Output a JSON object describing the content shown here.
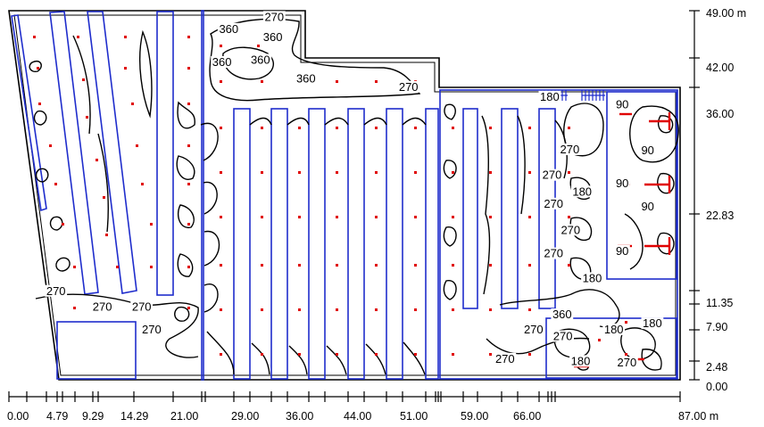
{
  "diagram": {
    "x_axis_labels": [
      "0.00",
      "4.79",
      "9.29",
      "14.29",
      "21.00",
      "29.00",
      "36.00",
      "44.00",
      "51.00",
      "59.00",
      "66.00",
      "87.00 m"
    ],
    "y_axis_labels": [
      "49.00 m",
      "42.00",
      "36.00",
      "22.83",
      "11.35",
      "7.90",
      "2.48",
      "0.00"
    ],
    "isoline_labels": [
      {
        "text": "270",
        "x": 34.4,
        "y": 48.2
      },
      {
        "text": "360",
        "x": 28.5,
        "y": 46.6
      },
      {
        "text": "360",
        "x": 34.2,
        "y": 45.5
      },
      {
        "text": "360",
        "x": 27.6,
        "y": 42.2
      },
      {
        "text": "360",
        "x": 32.6,
        "y": 42.5
      },
      {
        "text": "360",
        "x": 38.5,
        "y": 40.0
      },
      {
        "text": "270",
        "x": 51.8,
        "y": 38.9
      },
      {
        "text": "180",
        "x": 70.1,
        "y": 37.6
      },
      {
        "text": "90",
        "x": 79.5,
        "y": 36.6
      },
      {
        "text": "270",
        "x": 72.7,
        "y": 30.6
      },
      {
        "text": "90",
        "x": 82.8,
        "y": 30.5
      },
      {
        "text": "270",
        "x": 70.4,
        "y": 27.2
      },
      {
        "text": "180",
        "x": 74.3,
        "y": 25.0
      },
      {
        "text": "90",
        "x": 79.5,
        "y": 26.1
      },
      {
        "text": "270",
        "x": 70.6,
        "y": 23.4
      },
      {
        "text": "90",
        "x": 82.8,
        "y": 23.0
      },
      {
        "text": "270",
        "x": 72.8,
        "y": 19.9
      },
      {
        "text": "270",
        "x": 70.6,
        "y": 16.8
      },
      {
        "text": "90",
        "x": 79.5,
        "y": 17.1
      },
      {
        "text": "180",
        "x": 75.6,
        "y": 13.5
      },
      {
        "text": "270",
        "x": 6.1,
        "y": 11.8
      },
      {
        "text": "270",
        "x": 12.1,
        "y": 9.7
      },
      {
        "text": "270",
        "x": 17.2,
        "y": 9.7
      },
      {
        "text": "360",
        "x": 71.7,
        "y": 8.7
      },
      {
        "text": "180",
        "x": 83.4,
        "y": 7.5
      },
      {
        "text": "270",
        "x": 18.5,
        "y": 6.7
      },
      {
        "text": "270",
        "x": 68.0,
        "y": 6.7
      },
      {
        "text": "270",
        "x": 71.8,
        "y": 5.8
      },
      {
        "text": "180",
        "x": 78.4,
        "y": 6.7
      },
      {
        "text": "270",
        "x": 64.3,
        "y": 2.8
      },
      {
        "text": "180",
        "x": 74.1,
        "y": 2.5
      },
      {
        "text": "270",
        "x": 80.1,
        "y": 2.3
      }
    ],
    "colors": {
      "outline": "#000000",
      "equipment": "#1f2dcc",
      "measurement_points": "#e00000",
      "luminaires": "#e00000",
      "isolines": "#000000"
    }
  }
}
